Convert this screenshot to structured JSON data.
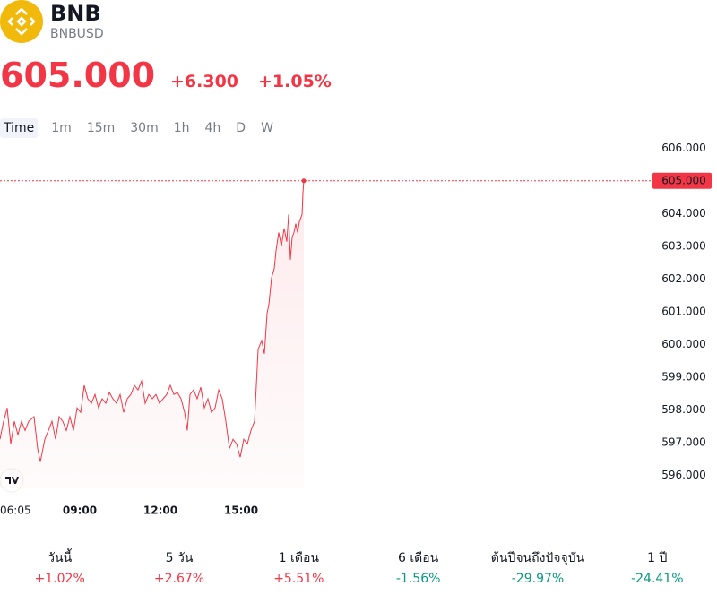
{
  "header": {
    "title": "BNB",
    "symbol": "BNBUSD",
    "price": "605.000",
    "change": "+6.300",
    "change_percent": "+1.05%"
  },
  "tabs": [
    "Time",
    "1m",
    "15m",
    "30m",
    "1h",
    "4h",
    "D",
    "W"
  ],
  "chart_data": {
    "type": "line",
    "x": [
      362,
      370,
      378,
      386,
      394,
      402,
      410,
      418,
      426,
      438,
      446,
      452,
      462,
      470,
      478,
      486,
      494,
      502,
      510,
      518,
      526,
      534,
      542,
      550,
      558,
      566,
      574,
      582,
      590,
      598,
      606,
      614,
      622,
      630,
      638,
      646,
      654,
      662,
      670,
      678,
      686,
      694,
      702,
      710,
      718,
      726,
      734,
      742,
      750,
      758,
      766,
      774,
      780,
      786,
      794,
      802,
      810,
      818,
      826,
      834,
      842,
      850,
      858,
      866,
      874,
      882,
      890,
      898,
      906,
      914,
      922,
      930,
      934,
      938,
      946,
      952,
      958,
      962,
      968,
      974,
      978,
      984,
      990,
      996,
      1002,
      1006,
      1010,
      1014,
      1018,
      1022,
      1026,
      1030,
      1036,
      1038,
      1040
    ],
    "series": [
      {
        "name": "BNBUSD",
        "color": "#f23645",
        "values": [
          597.1,
          597.65,
          598.06,
          596.96,
          597.65,
          597.24,
          597.65,
          597.37,
          597.65,
          597.79,
          596.82,
          596.41,
          597.1,
          597.37,
          597.65,
          597.1,
          597.79,
          597.65,
          597.37,
          597.79,
          597.37,
          598.06,
          597.92,
          598.75,
          598.34,
          598.2,
          598.47,
          598.06,
          598.34,
          598.2,
          598.53,
          598.34,
          598.2,
          598.47,
          597.92,
          598.34,
          598.47,
          598.75,
          598.61,
          598.88,
          598.2,
          598.47,
          598.34,
          598.47,
          598.2,
          598.34,
          598.47,
          598.75,
          598.47,
          598.53,
          598.34,
          597.92,
          597.37,
          598.47,
          598.61,
          598.34,
          598.69,
          598.06,
          598.34,
          597.92,
          598.06,
          598.61,
          598.34,
          597.65,
          596.82,
          597.1,
          596.96,
          596.55,
          597.1,
          596.96,
          597.37,
          597.65,
          598.75,
          599.85,
          600.12,
          599.71,
          600.95,
          601.22,
          602.04,
          602.32,
          602.87,
          603.42,
          603.01,
          603.55,
          603.14,
          603.97,
          602.59,
          603.28,
          603.42,
          603.69,
          603.42,
          603.75,
          603.97,
          604.65,
          605
        ]
      }
    ],
    "xlim": [
      362,
      1816
    ],
    "xticks": [
      {
        "value": 365,
        "label": "06:05"
      },
      {
        "value": 540,
        "label": "09:00"
      },
      {
        "value": 720,
        "label": "12:00"
      },
      {
        "value": 900,
        "label": "15:00"
      }
    ],
    "ylim": [
      595.6,
      606.2
    ],
    "yticks": [
      {
        "value": 596,
        "label": "596.000"
      },
      {
        "value": 597,
        "label": "597.000"
      },
      {
        "value": 598,
        "label": "598.000"
      },
      {
        "value": 599,
        "label": "599.000"
      },
      {
        "value": 600,
        "label": "600.000"
      },
      {
        "value": 601,
        "label": "601.000"
      },
      {
        "value": 602,
        "label": "602.000"
      },
      {
        "value": 603,
        "label": "603.000"
      },
      {
        "value": 604,
        "label": "604.000"
      },
      {
        "value": 605,
        "label": "605.000"
      },
      {
        "value": 606,
        "label": "606.000"
      }
    ]
  },
  "periods": [
    {
      "label": "วันนี้",
      "value": "+1.02%"
    },
    {
      "label": "5 วัน",
      "value": "+2.67%"
    },
    {
      "label": "1 เดือน",
      "value": "+5.51%"
    },
    {
      "label": "6 เดือน",
      "value": "-1.56%"
    },
    {
      "label": "ต้นปีจนถึงปัจจุบัน",
      "value": "-29.97%"
    },
    {
      "label": "1 ปี",
      "value": "-24.41%"
    }
  ]
}
